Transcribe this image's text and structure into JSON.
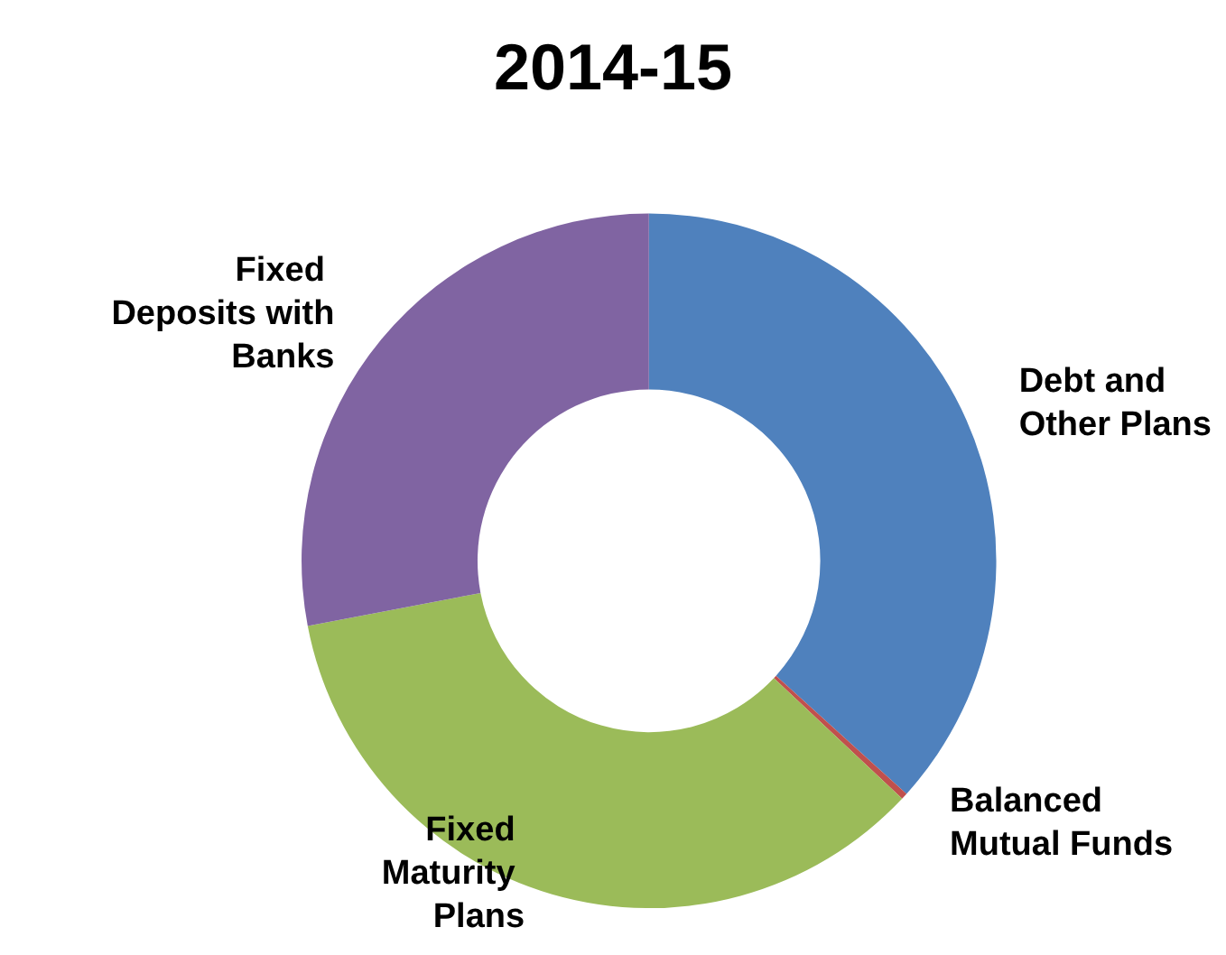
{
  "chart_data": {
    "type": "donut",
    "title": "2014-15",
    "categories": [
      "Debt and Other Plans",
      "Balanced Mutual Funds",
      "Fixed Maturity Plans",
      "Fixed Deposits with Banks"
    ],
    "values": [
      36.7,
      0.3,
      35,
      28
    ],
    "colors": [
      "#4f81bd",
      "#c0504d",
      "#9bbb59",
      "#8064a2"
    ]
  }
}
